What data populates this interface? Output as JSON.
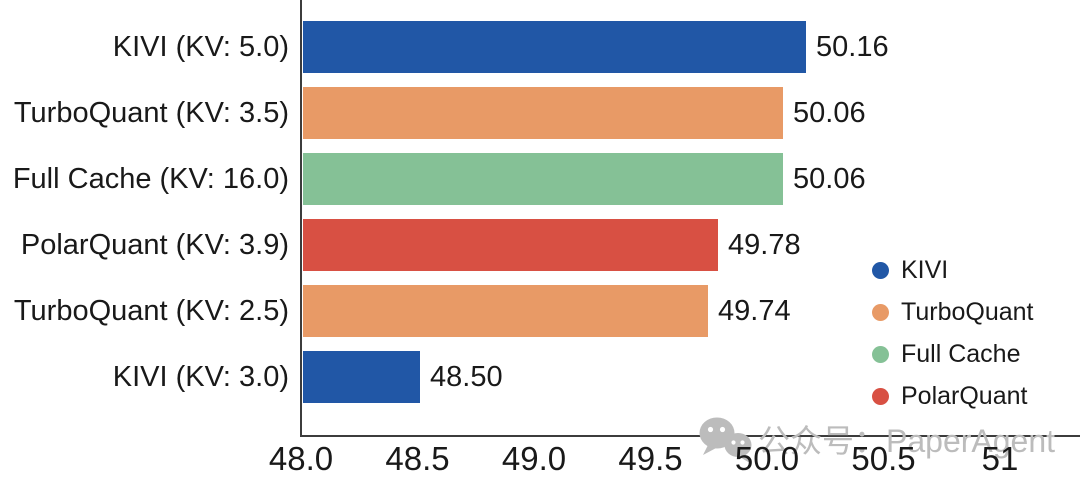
{
  "chart_data": {
    "type": "bar",
    "orientation": "horizontal",
    "title": "",
    "xlabel": "",
    "ylabel": "",
    "grid": false,
    "categories": [
      "KIVI (KV: 5.0)",
      "TurboQuant (KV: 3.5)",
      "Full Cache (KV: 16.0)",
      "PolarQuant (KV: 3.9)",
      "TurboQuant (KV: 2.5)",
      "KIVI (KV: 3.0)"
    ],
    "values": [
      50.16,
      50.06,
      50.06,
      49.78,
      49.74,
      48.5
    ],
    "value_labels": [
      "50.16",
      "50.06",
      "50.06",
      "49.78",
      "49.74",
      "48.50"
    ],
    "bar_series": [
      "KIVI",
      "TurboQuant",
      "Full Cache",
      "PolarQuant",
      "TurboQuant",
      "KIVI"
    ],
    "series_colors": {
      "KIVI": "#2157A6",
      "TurboQuant": "#E89A66",
      "Full Cache": "#85C196",
      "PolarQuant": "#D85043"
    },
    "x_axis": {
      "range": [
        48,
        51.4
      ],
      "tick_values": [
        48,
        48.5,
        49,
        49.5,
        50,
        50.5,
        51
      ],
      "tick_labels": [
        "48.0",
        "48.5",
        "49.0",
        "49.5",
        "50.0",
        "50.5",
        "51"
      ]
    },
    "legend": {
      "position": "right-inside",
      "entries": [
        {
          "label": "KIVI",
          "color": "#2157A6"
        },
        {
          "label": "TurboQuant",
          "color": "#E89A66"
        },
        {
          "label": "Full Cache",
          "color": "#85C196"
        },
        {
          "label": "PolarQuant",
          "color": "#D85043"
        }
      ]
    }
  },
  "watermark": {
    "icon": "wechat-icon",
    "text": "公众号：PaperAgent",
    "color": "#bcbcbc"
  },
  "style": {
    "axis_color": "#3c3c3c",
    "text_color": "#191919",
    "background": "#ffffff"
  }
}
